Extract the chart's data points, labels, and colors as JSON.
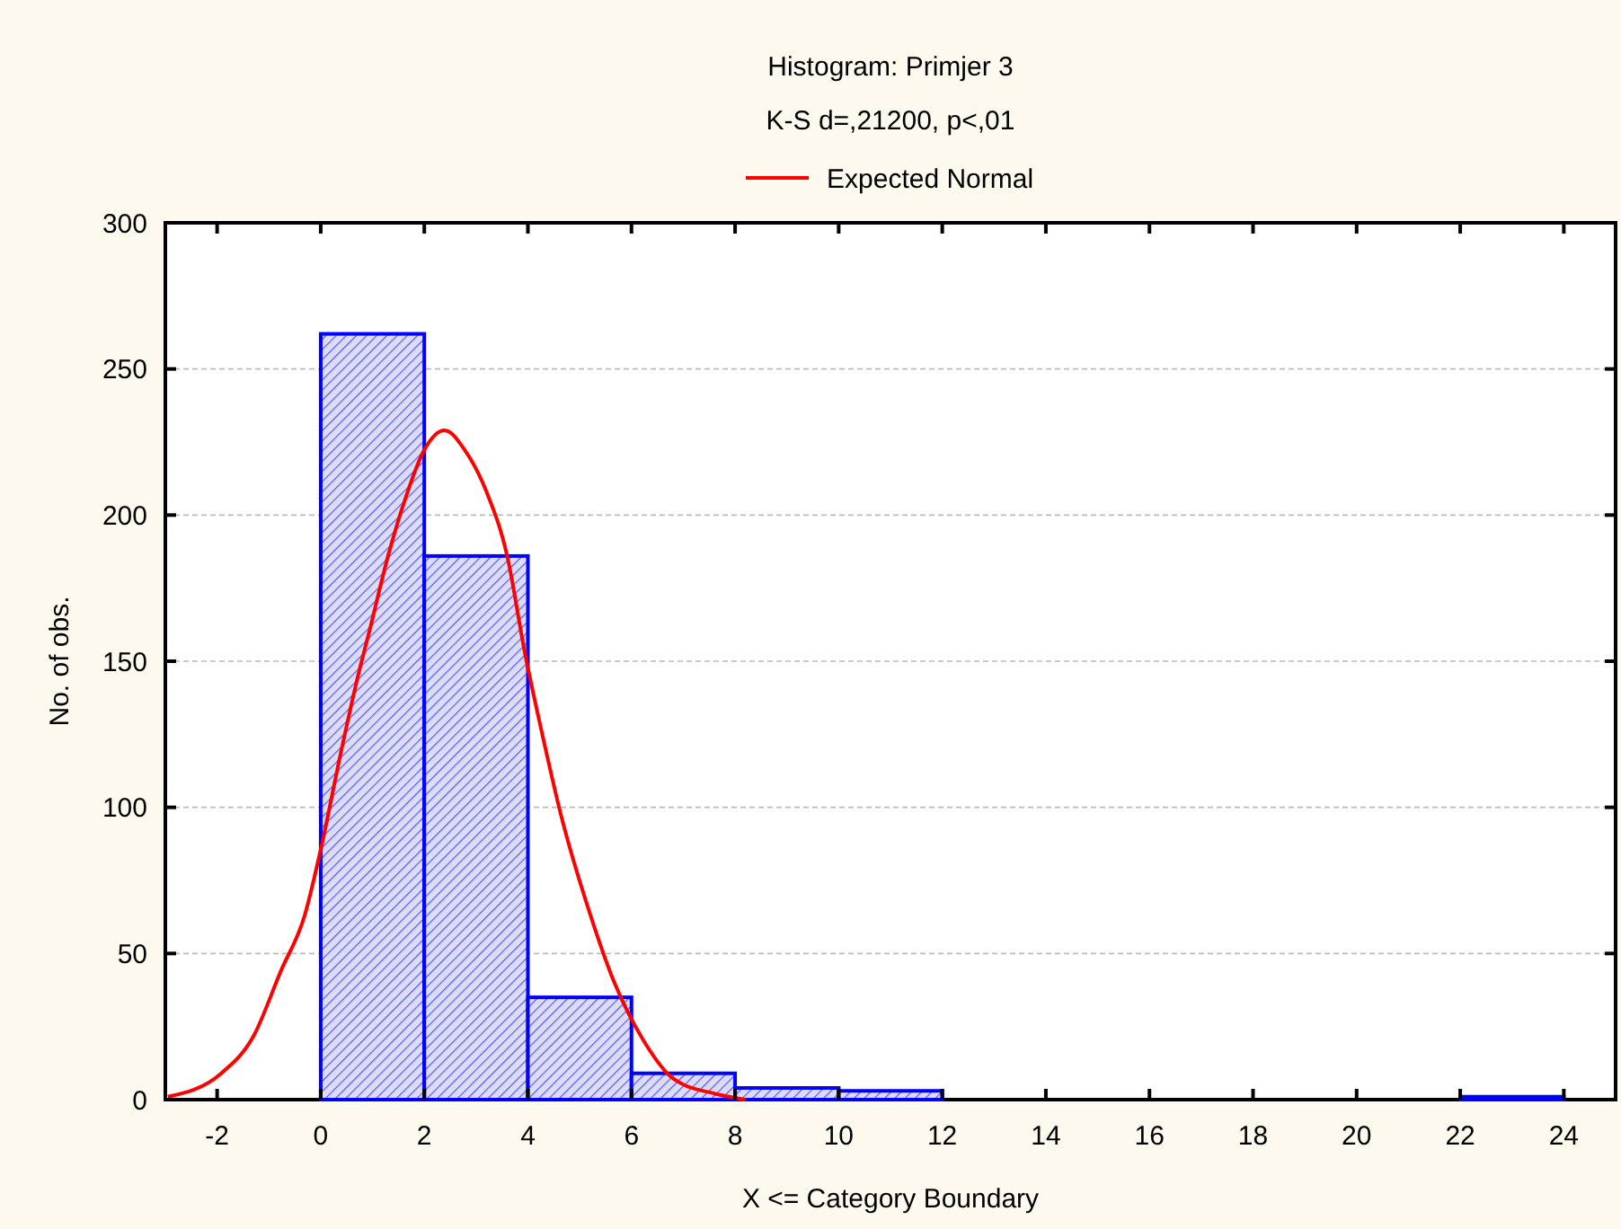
{
  "chart_data": {
    "type": "histogram",
    "title": "Histogram: Primjer 3",
    "subtitle": "K-S d=,21200, p<,01",
    "xlabel": "X <= Category Boundary",
    "ylabel": "No. of obs.",
    "xlim": [
      -3,
      25
    ],
    "xticks": [
      -2,
      0,
      2,
      4,
      6,
      8,
      10,
      12,
      14,
      16,
      18,
      20,
      22,
      24
    ],
    "ylim": [
      0,
      300
    ],
    "yticks": [
      0,
      50,
      100,
      150,
      200,
      250,
      300
    ],
    "grid": "y",
    "legend": "top",
    "series": [
      {
        "color": "#0000ff",
        "bins": [
          0,
          2,
          4,
          6,
          8,
          10,
          12,
          14,
          16,
          18,
          20,
          22,
          24
        ],
        "values": [
          262,
          186,
          35,
          9,
          4,
          3,
          0,
          0,
          0,
          0,
          0,
          1
        ]
      },
      {
        "type": "line",
        "name": "Expected Normal",
        "color": "#ff0000",
        "x": [
          -2.95,
          -1.92,
          -1.29,
          -0.77,
          -0.31,
          0.03,
          0.38,
          0.72,
          0.95,
          1.3,
          1.64,
          1.99,
          2.39,
          2.79,
          3.2,
          3.6,
          3.94,
          4.29,
          4.63,
          5.21,
          5.67,
          6.24,
          6.82,
          7.62,
          8.2
        ],
        "values": [
          1,
          9,
          22,
          44,
          63,
          88,
          118,
          145,
          161,
          186,
          206,
          222,
          229,
          222,
          208,
          186,
          153,
          124,
          98,
          63,
          40,
          20,
          7,
          2,
          0
        ]
      }
    ]
  }
}
